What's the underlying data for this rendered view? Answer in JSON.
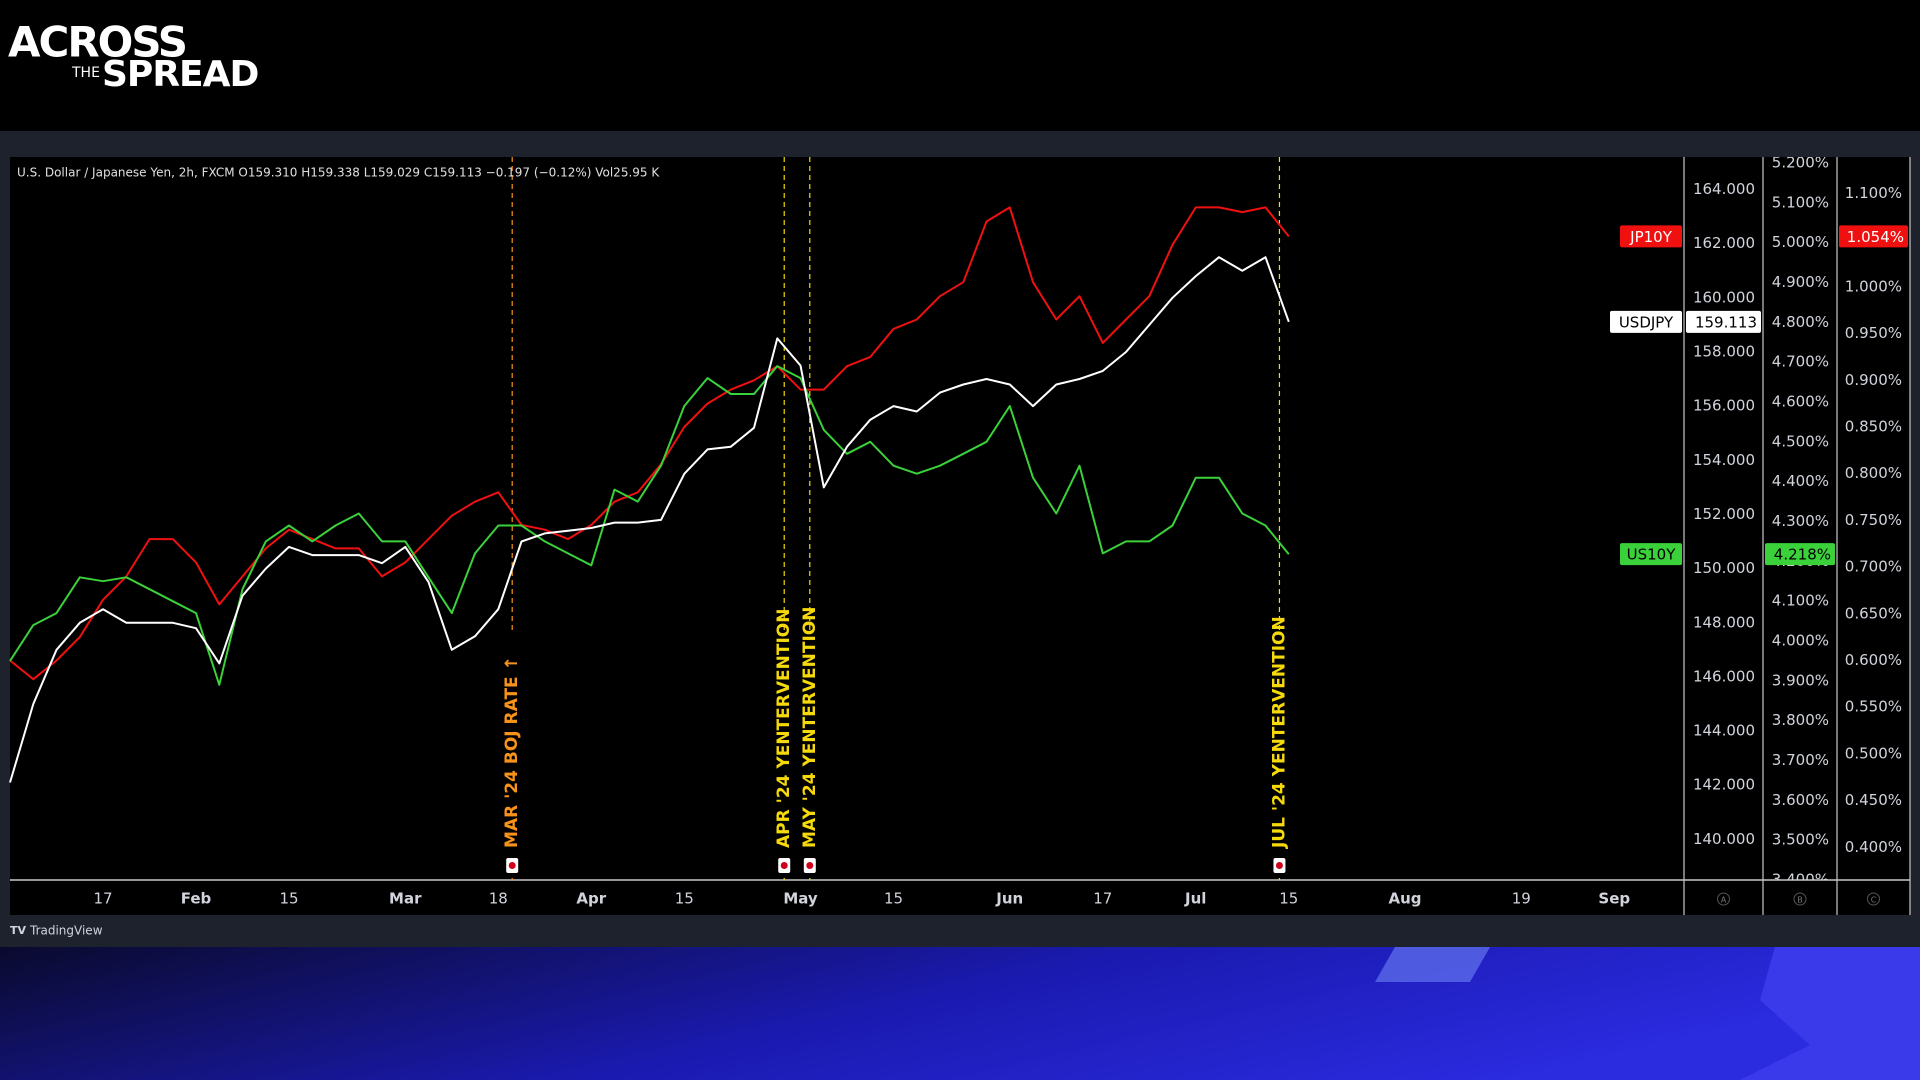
{
  "logo": {
    "line1": "ACROSS",
    "line2": "THE",
    "line3": "SPREAD"
  },
  "footer": "TradingView",
  "scale_labels": [
    "A",
    "B",
    "C"
  ],
  "chart_data": {
    "type": "line",
    "subtitle": "U.S. Dollar / Japanese Yen, 2h, FXCM  O159.310  H159.338  L159.029  C159.113  −0.197 (−0.12%)  Vol25.95 K",
    "categories": [
      null,
      null,
      null,
      null,
      "17",
      null,
      null,
      null,
      "Feb",
      null,
      null,
      null,
      "15",
      null,
      null,
      null,
      null,
      "Mar",
      null,
      null,
      null,
      "18",
      null,
      null,
      null,
      "Apr",
      null,
      null,
      null,
      "15",
      null,
      null,
      null,
      null,
      "May",
      null,
      null,
      null,
      "15",
      null,
      null,
      null,
      null,
      "Jun",
      null,
      null,
      null,
      "17",
      null,
      null,
      null,
      "Jul",
      null,
      null,
      null,
      "15",
      null,
      null,
      null,
      null,
      "Aug",
      null,
      null,
      null,
      null,
      "19",
      null,
      null,
      null,
      "Sep",
      null,
      null,
      null
    ],
    "series": [
      {
        "name": "JP10Y",
        "color": "#f01010",
        "axis": "y3",
        "last_label": "1.054%",
        "values": [
          0.6,
          0.58,
          0.6,
          0.625,
          0.665,
          0.69,
          0.73,
          0.73,
          0.705,
          0.66,
          0.69,
          0.72,
          0.74,
          0.73,
          0.72,
          0.72,
          0.69,
          0.705,
          0.73,
          0.755,
          0.77,
          0.78,
          0.745,
          0.74,
          0.73,
          0.745,
          0.77,
          0.78,
          0.81,
          0.85,
          0.875,
          0.89,
          0.9,
          0.915,
          0.89,
          0.89,
          0.915,
          0.925,
          0.955,
          0.965,
          0.99,
          1.005,
          1.07,
          1.085,
          1.005,
          0.965,
          0.99,
          0.94,
          0.965,
          0.99,
          1.045,
          1.085,
          1.085,
          1.08,
          1.085,
          1.054,
          null,
          null,
          null,
          null,
          null,
          null,
          null,
          null,
          null,
          null,
          null,
          null,
          null,
          null,
          null,
          null,
          null
        ]
      },
      {
        "name": "US10Y",
        "color": "#3ad13a",
        "axis": "y2",
        "last_label": "4.218%",
        "values": [
          3.95,
          4.04,
          4.07,
          4.16,
          4.15,
          4.16,
          4.13,
          4.1,
          4.07,
          3.89,
          4.13,
          4.25,
          4.29,
          4.25,
          4.29,
          4.32,
          4.25,
          4.25,
          4.16,
          4.07,
          4.22,
          4.29,
          4.29,
          4.25,
          4.22,
          4.19,
          4.38,
          4.35,
          4.44,
          4.59,
          4.66,
          4.62,
          4.62,
          4.69,
          4.66,
          4.53,
          4.47,
          4.5,
          4.44,
          4.42,
          4.44,
          4.47,
          4.5,
          4.59,
          4.41,
          4.32,
          4.44,
          4.22,
          4.25,
          4.25,
          4.29,
          4.41,
          4.41,
          4.32,
          4.29,
          4.218,
          null,
          null,
          null,
          null,
          null,
          null,
          null,
          null,
          null,
          null,
          null,
          null,
          null,
          null,
          null,
          null,
          null
        ]
      },
      {
        "name": "USDJPY",
        "color": "#ffffff",
        "axis": "y",
        "values": [
          142.1,
          145,
          147,
          148,
          148.5,
          148,
          148,
          148,
          147.8,
          146.5,
          149,
          150,
          150.8,
          150.5,
          150.5,
          150.5,
          150.2,
          150.8,
          149.5,
          147,
          147.5,
          148.5,
          151,
          151.3,
          151.4,
          151.5,
          151.7,
          151.7,
          151.8,
          153.5,
          154.4,
          154.5,
          155.2,
          158.5,
          157.5,
          153,
          154.5,
          155.5,
          156,
          155.8,
          156.5,
          156.8,
          157,
          156.8,
          156,
          156.8,
          157,
          157.3,
          158,
          159,
          160,
          160.8,
          161.5,
          161,
          161.5,
          159.113,
          null,
          null,
          null,
          null,
          null,
          null,
          null,
          null,
          null,
          null,
          null,
          null,
          null,
          null,
          null,
          null,
          null
        ]
      }
    ],
    "ylim": [
      138.5,
      165.2
    ],
    "yticks": [
      {
        "value": 140,
        "label": "140.000"
      },
      {
        "value": 142,
        "label": "142.000"
      },
      {
        "value": 144,
        "label": "144.000"
      },
      {
        "value": 146,
        "label": "146.000"
      },
      {
        "value": 148,
        "label": "148.000"
      },
      {
        "value": 150,
        "label": "150.000"
      },
      {
        "value": 152,
        "label": "152.000"
      },
      {
        "value": 154,
        "label": "154.000"
      },
      {
        "value": 156,
        "label": "156.000"
      },
      {
        "value": 158,
        "label": "158.000"
      },
      {
        "value": 160,
        "label": "160.000"
      },
      {
        "value": 162,
        "label": "162.000"
      },
      {
        "value": 164,
        "label": "164.000"
      }
    ],
    "y2lim": [
      3.4,
      5.215
    ],
    "y2ticks": [
      {
        "value": 3.4,
        "label": "3.400%"
      },
      {
        "value": 3.5,
        "label": "3.500%"
      },
      {
        "value": 3.6,
        "label": "3.600%"
      },
      {
        "value": 3.7,
        "label": "3.700%"
      },
      {
        "value": 3.8,
        "label": "3.800%"
      },
      {
        "value": 3.9,
        "label": "3.900%"
      },
      {
        "value": 4.0,
        "label": "4.000%"
      },
      {
        "value": 4.1,
        "label": "4.100%"
      },
      {
        "value": 4.2,
        "label": "4.200%"
      },
      {
        "value": 4.3,
        "label": "4.300%"
      },
      {
        "value": 4.4,
        "label": "4.400%"
      },
      {
        "value": 4.5,
        "label": "4.500%"
      },
      {
        "value": 4.6,
        "label": "4.600%"
      },
      {
        "value": 4.7,
        "label": "4.700%"
      },
      {
        "value": 4.8,
        "label": "4.800%"
      },
      {
        "value": 4.9,
        "label": "4.900%"
      },
      {
        "value": 5.0,
        "label": "5.000%"
      },
      {
        "value": 5.1,
        "label": "5.100%"
      },
      {
        "value": 5.2,
        "label": "5.200%"
      }
    ],
    "y3lim": [
      0.365,
      1.139
    ],
    "y3ticks": [
      {
        "value": 0.4,
        "label": "0.400%"
      },
      {
        "value": 0.45,
        "label": "0.450%"
      },
      {
        "value": 0.5,
        "label": "0.500%"
      },
      {
        "value": 0.55,
        "label": "0.550%"
      },
      {
        "value": 0.6,
        "label": "0.600%"
      },
      {
        "value": 0.65,
        "label": "0.650%"
      },
      {
        "value": 0.7,
        "label": "0.700%"
      },
      {
        "value": 0.75,
        "label": "0.750%"
      },
      {
        "value": 0.8,
        "label": "0.800%"
      },
      {
        "value": 0.85,
        "label": "0.850%"
      },
      {
        "value": 0.9,
        "label": "0.900%"
      },
      {
        "value": 0.95,
        "label": "0.950%"
      },
      {
        "value": 1.0,
        "label": "1.000%"
      },
      {
        "value": 1.05,
        "label": "1.050%"
      },
      {
        "value": 1.1,
        "label": "1.100%"
      }
    ],
    "grid": false,
    "annotations": [
      {
        "x": 21.6,
        "text": "MAR '24  BOJ  RATE ↑",
        "color": "#f7931a"
      },
      {
        "x": 33.3,
        "text": "APR '24  YENTERVENTION",
        "color": "#f5d90a"
      },
      {
        "x": 34.4,
        "text": "MAY '24  YENTERVENTION",
        "color": "#f5d90a"
      },
      {
        "x": 54.6,
        "text": "JUL '24  YENTERVENTION",
        "color": "#f5d90a"
      }
    ]
  }
}
